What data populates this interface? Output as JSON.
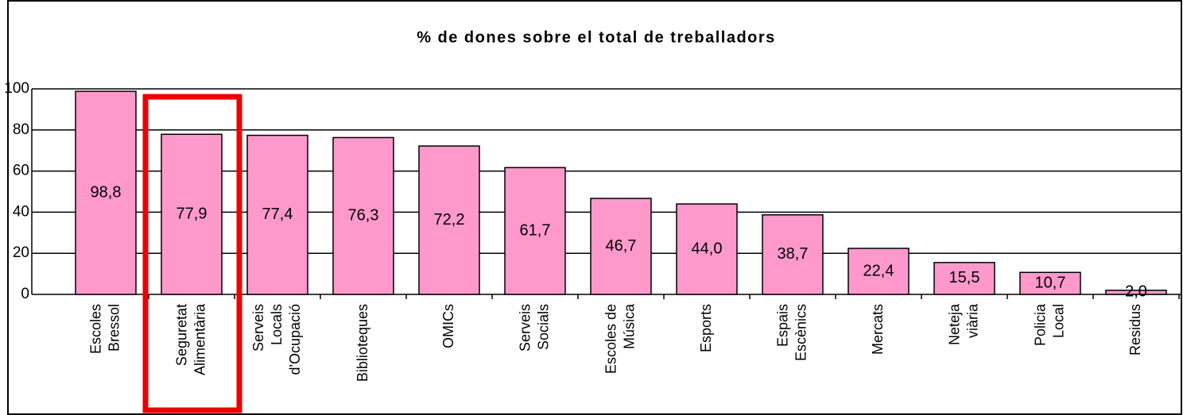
{
  "chart_data": {
    "type": "bar",
    "title": "% de dones sobre el total de treballadors",
    "categories": [
      [
        "Escoles",
        "Bressol"
      ],
      [
        "Seguretat",
        "Alimentària"
      ],
      [
        "Serveis",
        "Locals",
        "d'Ocupació"
      ],
      [
        "Biblioteques"
      ],
      [
        "OMICs"
      ],
      [
        "Serveis",
        "Socials"
      ],
      [
        "Escoles de",
        "Música"
      ],
      [
        "Esports"
      ],
      [
        "Espais",
        "Escènics"
      ],
      [
        "Mercats"
      ],
      [
        "Neteja",
        "viària"
      ],
      [
        "Policia",
        "Local"
      ],
      [
        "Residus"
      ]
    ],
    "values": [
      98.8,
      77.9,
      77.4,
      76.3,
      72.2,
      61.7,
      46.7,
      44.0,
      38.7,
      22.4,
      15.5,
      10.7,
      2.0
    ],
    "value_labels": [
      "98,8",
      "77,9",
      "77,4",
      "76,3",
      "72,2",
      "61,7",
      "46,7",
      "44,0",
      "38,7",
      "22,4",
      "15,5",
      "10,7",
      "2,0"
    ],
    "color": "#ff99cc",
    "ylim": [
      0,
      100
    ],
    "yticks": [
      0,
      20,
      40,
      60,
      80,
      100
    ],
    "grid": true
  }
}
